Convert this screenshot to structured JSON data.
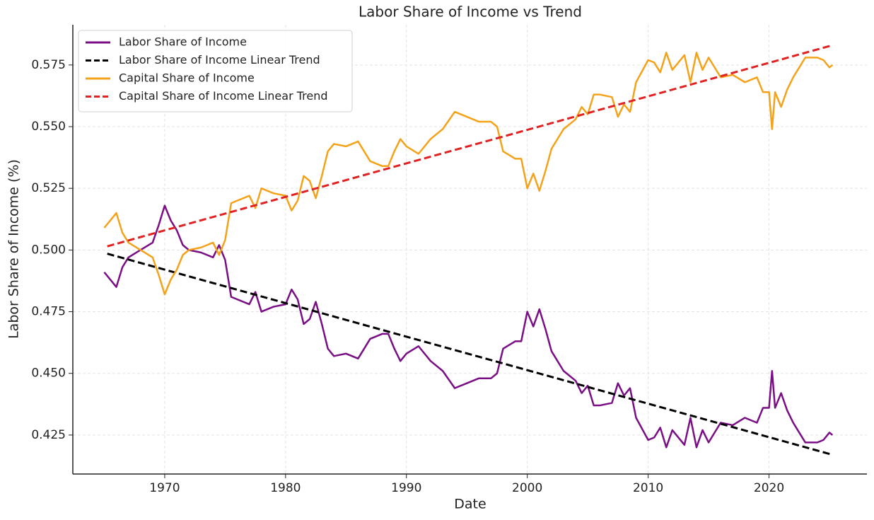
{
  "chart_data": {
    "type": "line",
    "title": "Labor Share of Income vs Trend",
    "xlabel": "Date",
    "ylabel": "Labor Share of Income (%)",
    "x": [
      1965,
      1965.5,
      1966,
      1966.5,
      1967,
      1968,
      1969,
      1969.5,
      1970,
      1970.5,
      1971,
      1971.5,
      1972,
      1973,
      1974,
      1974.5,
      1975,
      1975.5,
      1976,
      1977,
      1977.5,
      1978,
      1979,
      1980,
      1980.5,
      1981,
      1981.5,
      1982,
      1982.5,
      1983,
      1983.5,
      1984,
      1985,
      1986,
      1987,
      1988,
      1988.5,
      1989,
      1989.5,
      1990,
      1991,
      1992,
      1993,
      1994,
      1995,
      1996,
      1997,
      1997.5,
      1998,
      1999,
      1999.5,
      2000,
      2000.5,
      2001,
      2001.5,
      2002,
      2003,
      2004,
      2004.5,
      2005,
      2005.5,
      2006,
      2007,
      2007.5,
      2008,
      2008.5,
      2009,
      2010,
      2010.5,
      2011,
      2011.5,
      2012,
      2013,
      2013.5,
      2014,
      2014.5,
      2015,
      2016,
      2017,
      2018,
      2019,
      2019.5,
      2020,
      2020.25,
      2020.5,
      2021,
      2021.5,
      2022,
      2022.5,
      2023,
      2024,
      2024.5,
      2025,
      2025.25
    ],
    "series": [
      {
        "name": "Labor Share of Income",
        "color": "#7a0e85",
        "linestyle": "solid",
        "values": [
          0.491,
          0.488,
          0.485,
          0.493,
          0.497,
          0.5,
          0.503,
          0.51,
          0.518,
          0.512,
          0.508,
          0.502,
          0.5,
          0.499,
          0.497,
          0.502,
          0.496,
          0.481,
          0.48,
          0.478,
          0.483,
          0.475,
          0.477,
          0.478,
          0.484,
          0.48,
          0.47,
          0.472,
          0.479,
          0.47,
          0.46,
          0.457,
          0.458,
          0.456,
          0.464,
          0.466,
          0.466,
          0.46,
          0.455,
          0.458,
          0.461,
          0.455,
          0.451,
          0.444,
          0.446,
          0.448,
          0.448,
          0.45,
          0.46,
          0.463,
          0.463,
          0.475,
          0.469,
          0.476,
          0.468,
          0.459,
          0.451,
          0.447,
          0.442,
          0.445,
          0.437,
          0.437,
          0.438,
          0.446,
          0.441,
          0.444,
          0.432,
          0.423,
          0.424,
          0.428,
          0.42,
          0.427,
          0.421,
          0.432,
          0.42,
          0.427,
          0.422,
          0.43,
          0.429,
          0.432,
          0.43,
          0.436,
          0.436,
          0.451,
          0.436,
          0.442,
          0.435,
          0.43,
          0.426,
          0.422,
          0.422,
          0.423,
          0.426,
          0.425
        ]
      },
      {
        "name": "Labor Share of Income Linear Trend",
        "color": "#000000",
        "linestyle": "dashed",
        "x": [
          1965.25,
          2025.25
        ],
        "values": [
          0.4985,
          0.417
        ]
      },
      {
        "name": "Capital Share of Income",
        "color": "#f4a21a",
        "linestyle": "solid",
        "values": [
          0.509,
          0.512,
          0.515,
          0.507,
          0.503,
          0.5,
          0.497,
          0.49,
          0.482,
          0.488,
          0.492,
          0.498,
          0.5,
          0.501,
          0.503,
          0.498,
          0.504,
          0.519,
          0.52,
          0.522,
          0.517,
          0.525,
          0.523,
          0.522,
          0.516,
          0.52,
          0.53,
          0.528,
          0.521,
          0.53,
          0.54,
          0.543,
          0.542,
          0.544,
          0.536,
          0.534,
          0.534,
          0.54,
          0.545,
          0.542,
          0.539,
          0.545,
          0.549,
          0.556,
          0.554,
          0.552,
          0.552,
          0.55,
          0.54,
          0.537,
          0.537,
          0.525,
          0.531,
          0.524,
          0.532,
          0.541,
          0.549,
          0.553,
          0.558,
          0.555,
          0.563,
          0.563,
          0.562,
          0.554,
          0.559,
          0.556,
          0.568,
          0.577,
          0.576,
          0.572,
          0.58,
          0.573,
          0.579,
          0.568,
          0.58,
          0.573,
          0.578,
          0.57,
          0.571,
          0.568,
          0.57,
          0.564,
          0.564,
          0.549,
          0.564,
          0.558,
          0.565,
          0.57,
          0.574,
          0.578,
          0.578,
          0.577,
          0.574,
          0.575
        ]
      },
      {
        "name": "Capital Share of Income Linear Trend",
        "color": "#e02222",
        "linestyle": "dashed",
        "x": [
          1965.25,
          2025.25
        ],
        "values": [
          0.5015,
          0.583
        ]
      }
    ],
    "xlim": [
      1962.4,
      2028.1
    ],
    "xticks": [
      1970,
      1980,
      1990,
      2000,
      2010,
      2020
    ],
    "ylim": [
      0.4092,
      0.5913
    ],
    "yticks": [
      0.425,
      {
        "value": 0.45,
        "label": "0.450"
      },
      0.475,
      {
        "value": 0.5,
        "label": "0.500"
      },
      0.525,
      {
        "value": 0.55,
        "label": "0.550"
      },
      0.575
    ],
    "grid": true,
    "legend": "upper left"
  }
}
